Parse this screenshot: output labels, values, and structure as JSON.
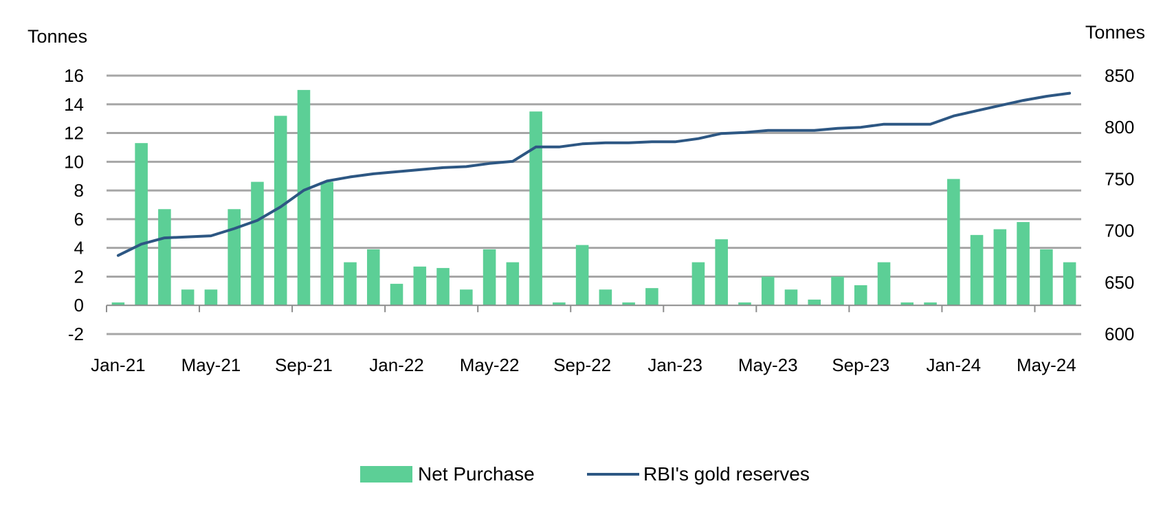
{
  "chart_data": {
    "type": "bar+line",
    "title": "",
    "left_axis": {
      "label": "Tonnes",
      "range": [
        -2,
        16
      ],
      "ticks": [
        -2,
        0,
        2,
        4,
        6,
        8,
        10,
        12,
        14,
        16
      ]
    },
    "right_axis": {
      "label": "Tonnes",
      "range": [
        600,
        850
      ],
      "ticks": [
        600,
        650,
        700,
        750,
        800,
        850
      ]
    },
    "grid": true,
    "legend_position": "bottom-center",
    "categories": [
      "Jan-21",
      "Feb-21",
      "Mar-21",
      "Apr-21",
      "May-21",
      "Jun-21",
      "Jul-21",
      "Aug-21",
      "Sep-21",
      "Oct-21",
      "Nov-21",
      "Dec-21",
      "Jan-22",
      "Feb-22",
      "Mar-22",
      "Apr-22",
      "May-22",
      "Jun-22",
      "Jul-22",
      "Aug-22",
      "Sep-22",
      "Oct-22",
      "Nov-22",
      "Dec-22",
      "Jan-23",
      "Feb-23",
      "Mar-23",
      "Apr-23",
      "May-23",
      "Jun-23",
      "Jul-23",
      "Aug-23",
      "Sep-23",
      "Oct-23",
      "Nov-23",
      "Dec-23",
      "Jan-24",
      "Feb-24",
      "Mar-24",
      "Apr-24",
      "May-24",
      "Jun-24"
    ],
    "x_tick_labels": [
      "Jan-21",
      "May-21",
      "Sep-21",
      "Jan-22",
      "May-22",
      "Sep-22",
      "Jan-23",
      "May-23",
      "Sep-23",
      "Jan-24",
      "May-24"
    ],
    "series": [
      {
        "name": "Net Purchase",
        "type": "bar",
        "axis": "left",
        "color": "#5ccf96",
        "values": [
          0.2,
          11.3,
          6.7,
          1.1,
          1.1,
          6.7,
          8.6,
          13.2,
          15.0,
          8.6,
          3.0,
          3.9,
          1.5,
          2.7,
          2.6,
          1.1,
          3.9,
          3.0,
          13.5,
          0.2,
          4.2,
          1.1,
          0.2,
          1.2,
          0.0,
          3.0,
          4.6,
          0.2,
          2.0,
          1.1,
          0.4,
          2.0,
          1.4,
          3.0,
          0.2,
          0.2,
          8.8,
          4.9,
          5.3,
          5.8,
          3.9,
          3.0
        ]
      },
      {
        "name": "RBI's gold reserves",
        "type": "line",
        "axis": "right",
        "color": "#2d5783",
        "values": [
          676,
          687,
          693,
          694,
          695,
          702,
          710,
          723,
          739,
          748,
          752,
          755,
          757,
          759,
          761,
          762,
          765,
          767,
          781,
          781,
          784,
          785,
          785,
          786,
          786,
          789,
          794,
          795,
          797,
          797,
          797,
          799,
          800,
          803,
          803,
          803,
          811,
          816,
          821,
          826,
          830,
          833
        ]
      }
    ]
  }
}
